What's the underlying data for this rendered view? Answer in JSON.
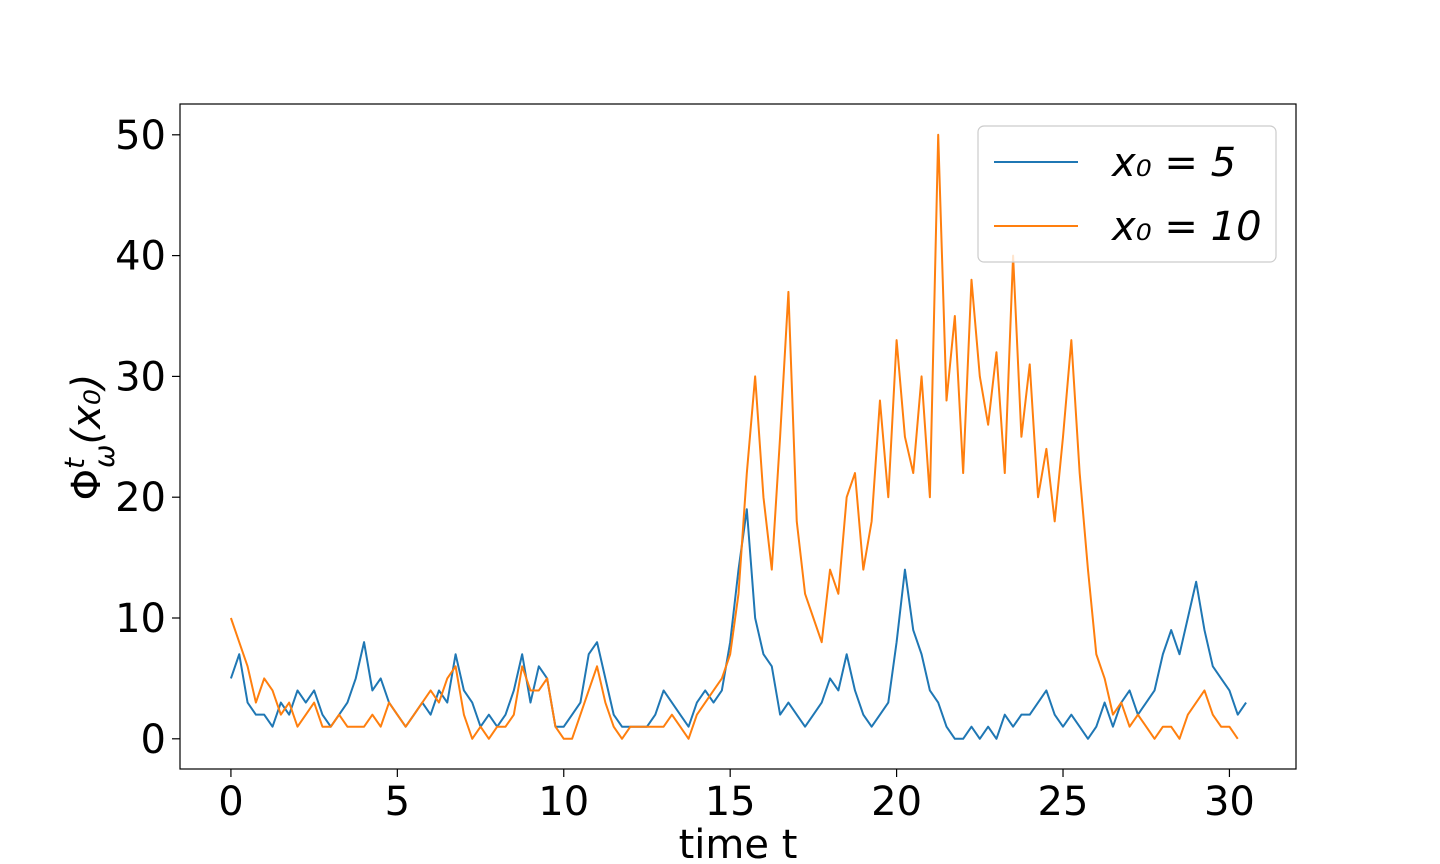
{
  "chart_data": {
    "type": "line",
    "xlabel": "time t",
    "ylabel": {
      "main": "Φ",
      "sup": "t",
      "sub": "ω",
      "arg": "(x₀)"
    },
    "x": [
      0,
      0.25,
      0.5,
      0.75,
      1,
      1.25,
      1.5,
      1.75,
      2,
      2.25,
      2.5,
      2.75,
      3,
      3.25,
      3.5,
      3.75,
      4,
      4.25,
      4.5,
      4.75,
      5,
      5.25,
      5.5,
      5.75,
      6,
      6.25,
      6.5,
      6.75,
      7,
      7.25,
      7.5,
      7.75,
      8,
      8.25,
      8.5,
      8.75,
      9,
      9.25,
      9.5,
      9.75,
      10,
      10.25,
      10.5,
      10.75,
      11,
      11.25,
      11.5,
      11.75,
      12,
      12.25,
      12.5,
      12.75,
      13,
      13.25,
      13.5,
      13.75,
      14,
      14.25,
      14.5,
      14.75,
      15,
      15.25,
      15.5,
      15.75,
      16,
      16.25,
      16.5,
      16.75,
      17,
      17.25,
      17.5,
      17.75,
      18,
      18.25,
      18.5,
      18.75,
      19,
      19.25,
      19.5,
      19.75,
      20,
      20.25,
      20.5,
      20.75,
      21,
      21.25,
      21.5,
      21.75,
      22,
      22.25,
      22.5,
      22.75,
      23,
      23.25,
      23.5,
      23.75,
      24,
      24.25,
      24.5,
      24.75,
      25,
      25.25,
      25.5,
      25.75,
      26,
      26.25,
      26.5,
      26.75,
      27,
      27.25,
      27.5,
      27.75,
      28,
      28.25,
      28.5,
      28.75,
      29,
      29.25,
      29.5,
      29.75,
      30,
      30.25,
      30.5
    ],
    "series": [
      {
        "name": "x₀ = 5",
        "color": "#1f77b4",
        "values": [
          5,
          7,
          3,
          2,
          2,
          1,
          3,
          2,
          4,
          3,
          4,
          2,
          1,
          2,
          3,
          5,
          8,
          4,
          5,
          3,
          2,
          1,
          2,
          3,
          2,
          4,
          3,
          7,
          4,
          3,
          1,
          2,
          1,
          2,
          4,
          7,
          3,
          6,
          5,
          1,
          1,
          2,
          3,
          7,
          8,
          5,
          2,
          1,
          1,
          1,
          1,
          2,
          4,
          3,
          2,
          1,
          3,
          4,
          3,
          4,
          8,
          14,
          19,
          10,
          7,
          6,
          2,
          3,
          2,
          1,
          2,
          3,
          5,
          4,
          7,
          4,
          2,
          1,
          2,
          3,
          8,
          14,
          9,
          7,
          4,
          3,
          1,
          0,
          0,
          1,
          0,
          1,
          0,
          2,
          1,
          2,
          2,
          3,
          4,
          2,
          1,
          2,
          1,
          0,
          1,
          3,
          1,
          3,
          4,
          2,
          3,
          4,
          7,
          9,
          7,
          10,
          13,
          9,
          6,
          5,
          4,
          2,
          3
        ]
      },
      {
        "name": "x₀ = 10",
        "color": "#ff7f0e",
        "values": [
          10,
          8,
          6,
          3,
          5,
          4,
          2,
          3,
          1,
          2,
          3,
          1,
          1,
          2,
          1,
          1,
          1,
          2,
          1,
          3,
          2,
          1,
          2,
          3,
          4,
          3,
          5,
          6,
          2,
          0,
          1,
          0,
          1,
          1,
          2,
          6,
          4,
          4,
          5,
          1,
          0,
          0,
          2,
          4,
          6,
          3,
          1,
          0,
          1,
          1,
          1,
          1,
          1,
          2,
          1,
          0,
          2,
          3,
          4,
          5,
          7,
          12,
          22,
          30,
          20,
          14,
          25,
          37,
          18,
          12,
          10,
          8,
          14,
          12,
          20,
          22,
          14,
          18,
          28,
          20,
          33,
          25,
          22,
          30,
          20,
          50,
          28,
          35,
          22,
          38,
          30,
          26,
          32,
          22,
          40,
          25,
          31,
          20,
          24,
          18,
          25,
          33,
          22,
          14,
          7,
          5,
          2,
          3,
          1,
          2,
          1,
          0,
          1,
          1,
          0,
          2,
          3,
          4,
          2,
          1,
          1,
          0,
          null
        ]
      }
    ],
    "xlim": [
      -1.53,
      32.0
    ],
    "ylim": [
      -2.5,
      52.55
    ],
    "xticks": [
      0,
      5,
      10,
      15,
      20,
      25,
      30
    ],
    "yticks": [
      0,
      10,
      20,
      30,
      40,
      50
    ],
    "grid": false,
    "legend": "upper right"
  }
}
